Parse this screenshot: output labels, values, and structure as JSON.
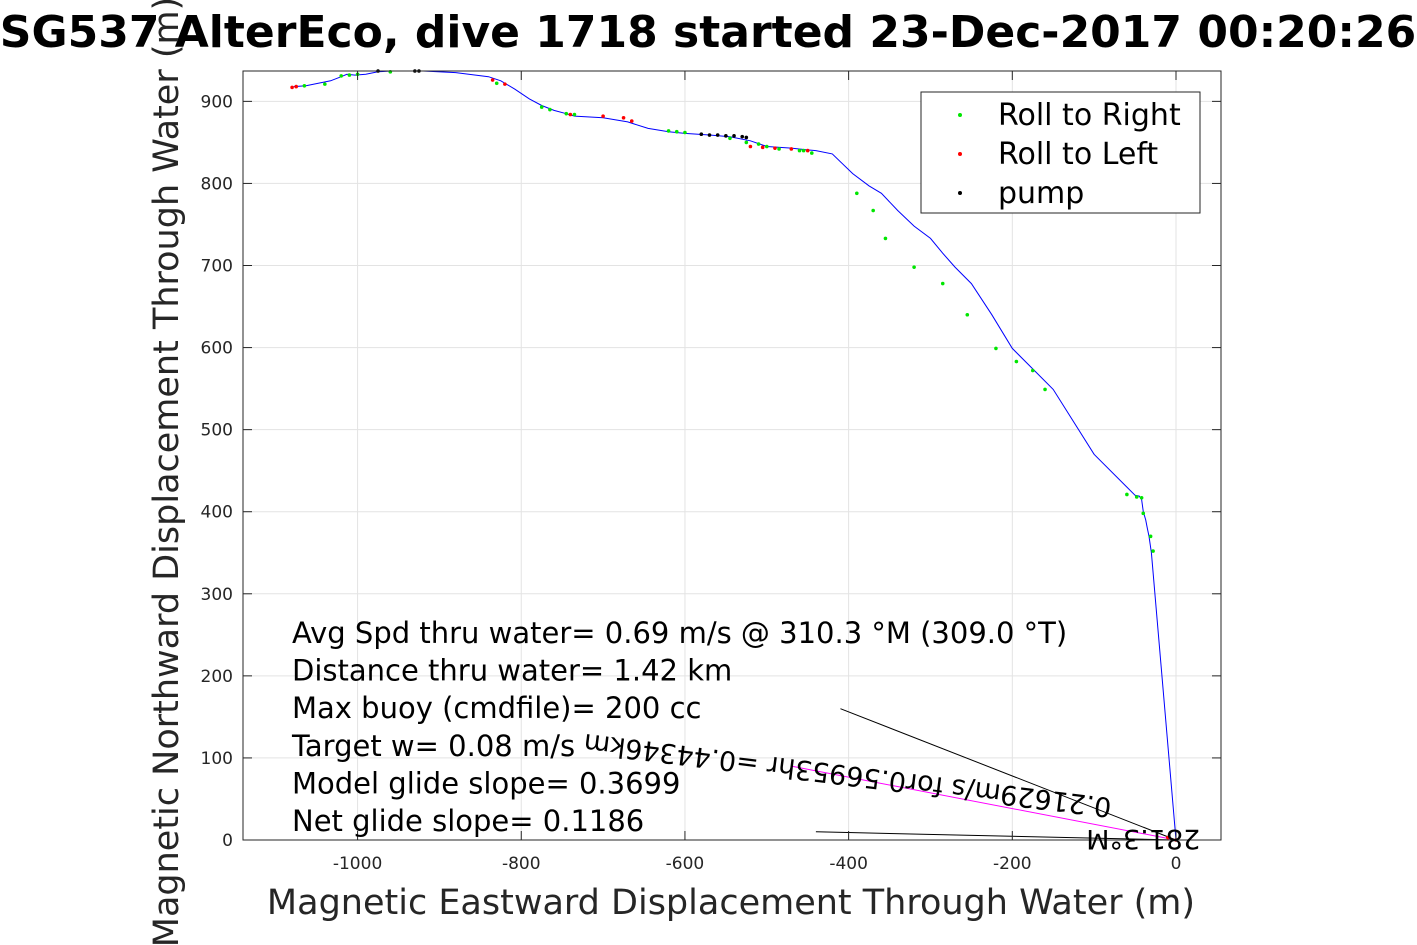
{
  "chart_data": {
    "type": "line",
    "title": "SG537 AlterEco, dive 1718 started 23-Dec-2017 00:20:26",
    "xlabel": "Magnetic Eastward Displacement Through Water (m)",
    "ylabel": "Magnetic Northward Displacement Through Water (m)",
    "xlim": [
      -1140,
      55
    ],
    "ylim": [
      0,
      937
    ],
    "xticks": [
      -1000,
      -800,
      -600,
      -400,
      -200,
      0
    ],
    "yticks": [
      0,
      100,
      200,
      300,
      400,
      500,
      600,
      700,
      800,
      900
    ],
    "xtick_labels": [
      "-1000",
      "-800",
      "-600",
      "-400",
      "-200",
      "0"
    ],
    "ytick_labels": [
      "0",
      "100",
      "200",
      "300",
      "400",
      "500",
      "600",
      "700",
      "800",
      "900"
    ],
    "grid": true,
    "legend_position": "top-right",
    "series": [
      {
        "name": "track",
        "color": "#0000ff",
        "marker": "none",
        "x": [
          0,
          -30,
          -33,
          -35,
          -37,
          -40,
          -42,
          -45,
          -50,
          -60,
          -100,
          -150,
          -200,
          -225,
          -250,
          -270,
          -285,
          -300,
          -320,
          -340,
          -360,
          -375,
          -395,
          -420,
          -440,
          -452,
          -470,
          -500,
          -520,
          -545,
          -570,
          -600,
          -620,
          -645,
          -670,
          -700,
          -735,
          -745,
          -760,
          -775,
          -790,
          -808,
          -825,
          -840,
          -880,
          -920,
          -960,
          -975,
          -990,
          -1003,
          -1013,
          -1020,
          -1033,
          -1048,
          -1063,
          -1078
        ],
        "y": [
          0,
          350,
          370,
          380,
          390,
          400,
          415,
          419,
          420,
          430,
          470,
          549,
          599,
          640,
          678,
          698,
          715,
          733,
          748,
          767,
          788,
          797,
          812,
          836,
          840,
          841,
          843,
          845,
          852,
          857,
          859,
          861,
          863,
          867,
          875,
          880,
          882,
          885,
          889,
          895,
          903,
          915,
          925,
          930,
          935,
          937,
          937,
          936,
          933,
          932,
          933,
          930,
          925,
          922,
          919,
          918
        ]
      },
      {
        "name": "Roll to Right",
        "color": "#00e600",
        "marker": "dot",
        "x": [
          -28,
          -31,
          -40,
          -42,
          -48,
          -60,
          -160,
          -175,
          -195,
          -220,
          -255,
          -285,
          -320,
          -355,
          -370,
          -390,
          -445,
          -455,
          -460,
          -485,
          -500,
          -510,
          -525,
          -545,
          -600,
          -610,
          -620,
          -735,
          -745,
          -765,
          -775,
          -830,
          -960,
          -1000,
          -1010,
          -1020,
          -1040,
          -1065
        ],
        "y": [
          352,
          370,
          398,
          417,
          418,
          421,
          549,
          572,
          583,
          599,
          640,
          678,
          698,
          733,
          767,
          788,
          837,
          840,
          840,
          842,
          845,
          848,
          850,
          855,
          862,
          863,
          864,
          884,
          885,
          890,
          893,
          922,
          936,
          933,
          932,
          931,
          921,
          919
        ]
      },
      {
        "name": "Roll to Left",
        "color": "#ff0000",
        "marker": "dot",
        "x": [
          0,
          -10,
          -450,
          -470,
          -490,
          -505,
          -520,
          -665,
          -675,
          -700,
          -740,
          -820,
          -835,
          -1080,
          -1075
        ],
        "y": [
          0,
          3,
          840,
          842,
          843,
          844,
          845,
          876,
          880,
          882,
          884,
          921,
          926,
          917,
          918
        ]
      },
      {
        "name": "pump",
        "color": "#000000",
        "marker": "dot",
        "x": [
          -525,
          -530,
          -540,
          -550,
          -560,
          -570,
          -580,
          -925,
          -930,
          -975
        ],
        "y": [
          856,
          857,
          858,
          858,
          859,
          859,
          860,
          937,
          937,
          937
        ]
      }
    ],
    "legend": [
      {
        "label": "Roll to Right",
        "color": "#00e600"
      },
      {
        "label": "Roll to Left",
        "color": "#ff0000"
      },
      {
        "label": "pump",
        "color": "#000000"
      }
    ],
    "annotations": [
      "Avg Spd thru water=  0.69 m/s @ 310.3 °M (309.0 °T)",
      "Distance thru water=  1.42 km",
      "Max buoy (cmdfile)= 200 cc",
      "Target w= 0.08 m/s",
      "Model glide slope= 0.3699",
      "Net glide slope= 0.1186"
    ],
    "vector_labels": [
      {
        "text": "281.3°M",
        "x": -40,
        "y": 12,
        "angle": 180
      },
      {
        "text": "0.21629m/s for0.56953hr =0.44346km",
        "x": -400,
        "y": 90,
        "angle": 187
      }
    ],
    "vectors": [
      {
        "x": [
          0,
          -410
        ],
        "y": [
          0,
          160
        ]
      },
      {
        "x": [
          0,
          -440
        ],
        "y": [
          0,
          10
        ]
      }
    ]
  }
}
